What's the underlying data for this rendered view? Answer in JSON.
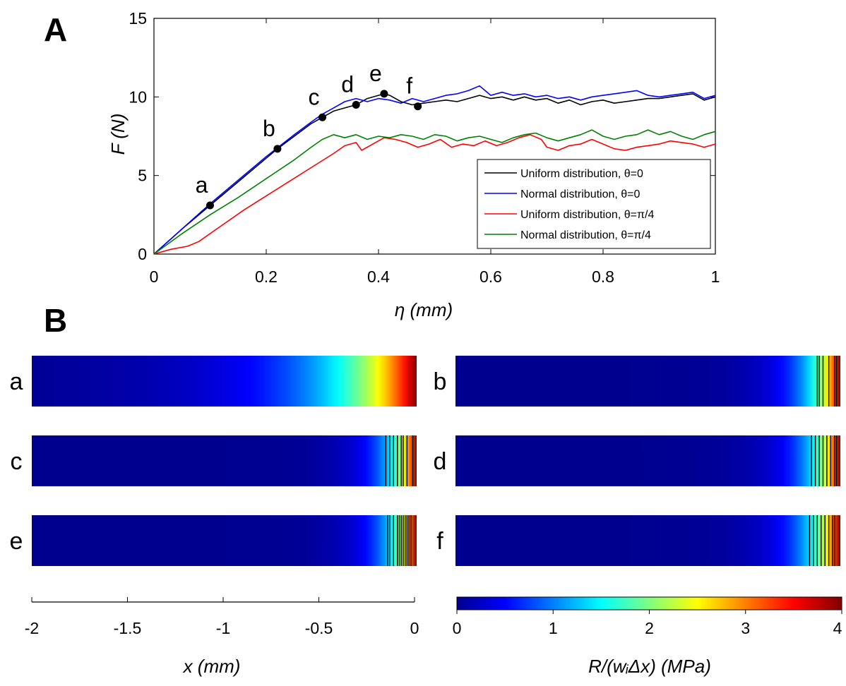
{
  "panels": {
    "A": "A",
    "B": "B"
  },
  "chart_data": [
    {
      "type": "line",
      "panel": "A",
      "xlabel": "η (mm)",
      "ylabel": "F (N)",
      "xlim": [
        0,
        1
      ],
      "ylim": [
        0,
        15
      ],
      "xticks": [
        0,
        0.2,
        0.4,
        0.6,
        0.8,
        1
      ],
      "xtick_labels": [
        "0",
        "0.2",
        "0.4",
        "0.6",
        "0.8",
        "1"
      ],
      "yticks": [
        0,
        5,
        10,
        15
      ],
      "ytick_labels": [
        "0",
        "5",
        "10",
        "15"
      ],
      "grid": false,
      "legend_position": "bottom-right",
      "series": [
        {
          "name": "Uniform distribution, θ=0",
          "color": "#000000",
          "points": [
            [
              0,
              0
            ],
            [
              0.05,
              1.6
            ],
            [
              0.1,
              3.1
            ],
            [
              0.15,
              4.6
            ],
            [
              0.2,
              6.1
            ],
            [
              0.22,
              6.7
            ],
            [
              0.25,
              7.5
            ],
            [
              0.28,
              8.3
            ],
            [
              0.3,
              8.7
            ],
            [
              0.32,
              9.1
            ],
            [
              0.34,
              9.3
            ],
            [
              0.36,
              9.5
            ],
            [
              0.38,
              9.9
            ],
            [
              0.4,
              10.1
            ],
            [
              0.41,
              10.2
            ],
            [
              0.42,
              10.1
            ],
            [
              0.44,
              9.7
            ],
            [
              0.46,
              9.5
            ],
            [
              0.48,
              9.6
            ],
            [
              0.5,
              9.7
            ],
            [
              0.52,
              9.8
            ],
            [
              0.54,
              9.7
            ],
            [
              0.56,
              9.9
            ],
            [
              0.58,
              10.1
            ],
            [
              0.6,
              9.9
            ],
            [
              0.62,
              10.0
            ],
            [
              0.64,
              9.8
            ],
            [
              0.66,
              10.0
            ],
            [
              0.68,
              9.8
            ],
            [
              0.7,
              9.9
            ],
            [
              0.72,
              9.6
            ],
            [
              0.74,
              9.8
            ],
            [
              0.76,
              9.5
            ],
            [
              0.78,
              9.7
            ],
            [
              0.8,
              9.8
            ],
            [
              0.82,
              9.6
            ],
            [
              0.84,
              9.7
            ],
            [
              0.86,
              9.8
            ],
            [
              0.88,
              9.9
            ],
            [
              0.9,
              9.9
            ],
            [
              0.92,
              10.0
            ],
            [
              0.94,
              10.1
            ],
            [
              0.96,
              10.2
            ],
            [
              0.98,
              9.8
            ],
            [
              1.0,
              10.0
            ]
          ]
        },
        {
          "name": "Normal distribution, θ=0",
          "color": "#0000ff",
          "points": [
            [
              0,
              0
            ],
            [
              0.05,
              1.6
            ],
            [
              0.1,
              3.2
            ],
            [
              0.15,
              4.7
            ],
            [
              0.2,
              6.2
            ],
            [
              0.25,
              7.6
            ],
            [
              0.28,
              8.4
            ],
            [
              0.3,
              8.9
            ],
            [
              0.32,
              9.3
            ],
            [
              0.34,
              9.7
            ],
            [
              0.36,
              9.9
            ],
            [
              0.38,
              9.7
            ],
            [
              0.4,
              9.9
            ],
            [
              0.42,
              9.8
            ],
            [
              0.44,
              9.6
            ],
            [
              0.46,
              9.9
            ],
            [
              0.48,
              9.7
            ],
            [
              0.5,
              9.9
            ],
            [
              0.52,
              10.1
            ],
            [
              0.54,
              10.2
            ],
            [
              0.56,
              10.4
            ],
            [
              0.58,
              10.7
            ],
            [
              0.6,
              10.1
            ],
            [
              0.62,
              10.3
            ],
            [
              0.64,
              10.1
            ],
            [
              0.66,
              10.2
            ],
            [
              0.68,
              10.0
            ],
            [
              0.7,
              10.1
            ],
            [
              0.72,
              9.9
            ],
            [
              0.74,
              10.0
            ],
            [
              0.76,
              9.8
            ],
            [
              0.78,
              10.0
            ],
            [
              0.8,
              10.1
            ],
            [
              0.82,
              10.2
            ],
            [
              0.84,
              10.3
            ],
            [
              0.86,
              10.4
            ],
            [
              0.88,
              10.1
            ],
            [
              0.9,
              10.0
            ],
            [
              0.92,
              10.1
            ],
            [
              0.94,
              10.2
            ],
            [
              0.96,
              10.3
            ],
            [
              0.98,
              9.9
            ],
            [
              1.0,
              10.1
            ]
          ]
        },
        {
          "name": "Uniform distribution, θ=π/4",
          "color": "#ff0000",
          "points": [
            [
              0,
              0
            ],
            [
              0.03,
              0.3
            ],
            [
              0.06,
              0.5
            ],
            [
              0.08,
              0.8
            ],
            [
              0.12,
              1.8
            ],
            [
              0.16,
              2.8
            ],
            [
              0.2,
              3.7
            ],
            [
              0.24,
              4.6
            ],
            [
              0.28,
              5.5
            ],
            [
              0.32,
              6.4
            ],
            [
              0.34,
              6.9
            ],
            [
              0.36,
              7.1
            ],
            [
              0.37,
              6.6
            ],
            [
              0.39,
              7.0
            ],
            [
              0.41,
              7.4
            ],
            [
              0.43,
              7.3
            ],
            [
              0.45,
              7.1
            ],
            [
              0.47,
              6.8
            ],
            [
              0.49,
              7.0
            ],
            [
              0.51,
              7.3
            ],
            [
              0.53,
              6.8
            ],
            [
              0.55,
              7.0
            ],
            [
              0.57,
              6.9
            ],
            [
              0.59,
              7.2
            ],
            [
              0.61,
              6.9
            ],
            [
              0.63,
              7.1
            ],
            [
              0.65,
              7.4
            ],
            [
              0.67,
              7.6
            ],
            [
              0.69,
              7.3
            ],
            [
              0.7,
              6.8
            ],
            [
              0.72,
              6.6
            ],
            [
              0.74,
              6.9
            ],
            [
              0.76,
              7.0
            ],
            [
              0.78,
              7.3
            ],
            [
              0.8,
              7.0
            ],
            [
              0.82,
              6.7
            ],
            [
              0.84,
              6.6
            ],
            [
              0.86,
              6.8
            ],
            [
              0.88,
              6.9
            ],
            [
              0.9,
              7.0
            ],
            [
              0.92,
              7.2
            ],
            [
              0.94,
              7.1
            ],
            [
              0.96,
              7.0
            ],
            [
              0.98,
              6.8
            ],
            [
              1.0,
              7.0
            ]
          ]
        },
        {
          "name": "Normal distribution, θ=π/4",
          "color": "#008000",
          "points": [
            [
              0,
              0
            ],
            [
              0.05,
              1.3
            ],
            [
              0.1,
              2.5
            ],
            [
              0.15,
              3.6
            ],
            [
              0.2,
              4.8
            ],
            [
              0.25,
              6.0
            ],
            [
              0.28,
              6.8
            ],
            [
              0.3,
              7.3
            ],
            [
              0.32,
              7.6
            ],
            [
              0.34,
              7.4
            ],
            [
              0.36,
              7.6
            ],
            [
              0.38,
              7.3
            ],
            [
              0.4,
              7.5
            ],
            [
              0.42,
              7.4
            ],
            [
              0.44,
              7.6
            ],
            [
              0.46,
              7.5
            ],
            [
              0.48,
              7.3
            ],
            [
              0.5,
              7.6
            ],
            [
              0.52,
              7.5
            ],
            [
              0.54,
              7.2
            ],
            [
              0.56,
              7.4
            ],
            [
              0.58,
              7.5
            ],
            [
              0.6,
              7.3
            ],
            [
              0.62,
              7.1
            ],
            [
              0.64,
              7.4
            ],
            [
              0.66,
              7.6
            ],
            [
              0.68,
              7.7
            ],
            [
              0.7,
              7.4
            ],
            [
              0.72,
              7.2
            ],
            [
              0.74,
              7.4
            ],
            [
              0.76,
              7.6
            ],
            [
              0.78,
              7.9
            ],
            [
              0.8,
              7.5
            ],
            [
              0.82,
              7.3
            ],
            [
              0.84,
              7.5
            ],
            [
              0.86,
              7.6
            ],
            [
              0.88,
              7.9
            ],
            [
              0.9,
              7.6
            ],
            [
              0.92,
              7.8
            ],
            [
              0.94,
              7.5
            ],
            [
              0.96,
              7.3
            ],
            [
              0.98,
              7.6
            ],
            [
              1.0,
              7.8
            ]
          ]
        }
      ],
      "markers": [
        {
          "label": "a",
          "x": 0.1,
          "y": 3.1
        },
        {
          "label": "b",
          "x": 0.22,
          "y": 6.7
        },
        {
          "label": "c",
          "x": 0.3,
          "y": 8.7
        },
        {
          "label": "d",
          "x": 0.36,
          "y": 9.5
        },
        {
          "label": "e",
          "x": 0.41,
          "y": 10.2
        },
        {
          "label": "f",
          "x": 0.47,
          "y": 9.4
        }
      ]
    },
    {
      "type": "heatmap",
      "panel": "B",
      "xlabel": "x (mm)",
      "xlim": [
        -2,
        0
      ],
      "xticks": [
        -2,
        -1.5,
        -1,
        -0.5,
        0
      ],
      "xtick_labels": [
        "-2",
        "-1.5",
        "-1",
        "-0.5",
        "0"
      ],
      "colorbar": {
        "label": "R/(wᵢΔx) (MPa)",
        "range": [
          0,
          4
        ],
        "ticks": [
          0,
          1,
          2,
          3,
          4
        ],
        "tick_labels": [
          "0",
          "1",
          "2",
          "3",
          "4"
        ],
        "colormap": "jet"
      },
      "strips": [
        {
          "label": "a",
          "column": "left",
          "row": 0,
          "decay": 0.42,
          "crack_lines": []
        },
        {
          "label": "b",
          "column": "right",
          "row": 0,
          "decay": 0.15,
          "crack_lines": [
            -0.12,
            -0.11,
            -0.09,
            -0.06,
            -0.03,
            -0.02
          ]
        },
        {
          "label": "c",
          "column": "left",
          "row": 1,
          "decay": 0.13,
          "crack_lines": [
            -0.16,
            -0.14,
            -0.12,
            -0.1,
            -0.08,
            -0.07,
            -0.05,
            -0.02
          ]
        },
        {
          "label": "d",
          "column": "right",
          "row": 1,
          "decay": 0.14,
          "crack_lines": [
            -0.15,
            -0.13,
            -0.11,
            -0.09,
            -0.07,
            -0.05,
            -0.03,
            -0.02
          ]
        },
        {
          "label": "e",
          "column": "left",
          "row": 2,
          "decay": 0.13,
          "crack_lines": [
            -0.15,
            -0.14,
            -0.12,
            -0.1,
            -0.09,
            -0.08,
            -0.07,
            -0.06,
            -0.05,
            -0.04,
            -0.03
          ]
        },
        {
          "label": "f",
          "column": "right",
          "row": 2,
          "decay": 0.15,
          "crack_lines": [
            -0.16,
            -0.14,
            -0.12,
            -0.1,
            -0.08,
            -0.06,
            -0.04,
            -0.03
          ]
        }
      ]
    }
  ]
}
